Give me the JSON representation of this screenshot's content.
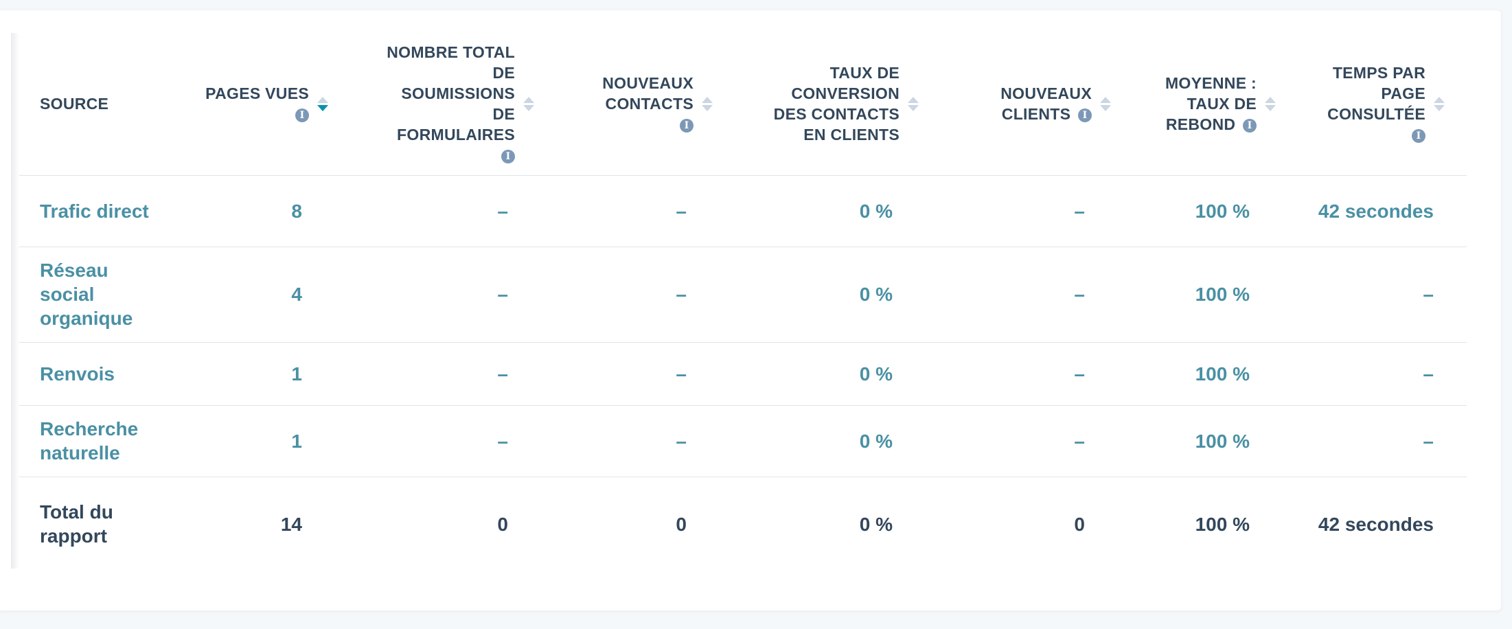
{
  "columns": [
    {
      "label": "SOURCE",
      "info": false,
      "sort": false
    },
    {
      "label": "PAGES VUES",
      "info": true,
      "sort": true,
      "sort_active": "down"
    },
    {
      "label": "NOMBRE TOTAL DE SOUMISSIONS DE FORMULAIRES",
      "info": true,
      "sort": true
    },
    {
      "label": "NOUVEAUX CONTACTS",
      "info": true,
      "sort": true
    },
    {
      "label": "TAUX DE CONVERSION DES CONTACTS EN CLIENTS",
      "info": false,
      "sort": true
    },
    {
      "label": "NOUVEAUX CLIENTS",
      "info": true,
      "sort": true
    },
    {
      "label": "MOYENNE : TAUX DE REBOND",
      "info": true,
      "sort": true
    },
    {
      "label": "TEMPS PAR PAGE CONSULTÉE",
      "info": true,
      "sort": true
    }
  ],
  "rows": [
    {
      "source": "Trafic direct",
      "pages_vues": "8",
      "soumissions": "–",
      "nouveaux_contacts": "–",
      "taux_conversion": "0 %",
      "nouveaux_clients": "–",
      "taux_rebond": "100 %",
      "temps_par_page": "42 secondes"
    },
    {
      "source": "Réseau social organique",
      "pages_vues": "4",
      "soumissions": "–",
      "nouveaux_contacts": "–",
      "taux_conversion": "0 %",
      "nouveaux_clients": "–",
      "taux_rebond": "100 %",
      "temps_par_page": "–"
    },
    {
      "source": "Renvois",
      "pages_vues": "1",
      "soumissions": "–",
      "nouveaux_contacts": "–",
      "taux_conversion": "0 %",
      "nouveaux_clients": "–",
      "taux_rebond": "100 %",
      "temps_par_page": "–"
    },
    {
      "source": "Recherche naturelle",
      "pages_vues": "1",
      "soumissions": "–",
      "nouveaux_contacts": "–",
      "taux_conversion": "0 %",
      "nouveaux_clients": "–",
      "taux_rebond": "100 %",
      "temps_par_page": "–"
    }
  ],
  "total": {
    "source": "Total du rapport",
    "pages_vues": "14",
    "soumissions": "0",
    "nouveaux_contacts": "0",
    "taux_conversion": "0 %",
    "nouveaux_clients": "0",
    "taux_rebond": "100 %",
    "temps_par_page": "42 secondes"
  },
  "icons": {
    "info": "info-icon",
    "sort": "sort-arrows-icon"
  },
  "colors": {
    "link": "#4a90a4",
    "header_text": "#33475b",
    "sort_active": "#0091ae",
    "info_icon": "#7c98b6"
  }
}
